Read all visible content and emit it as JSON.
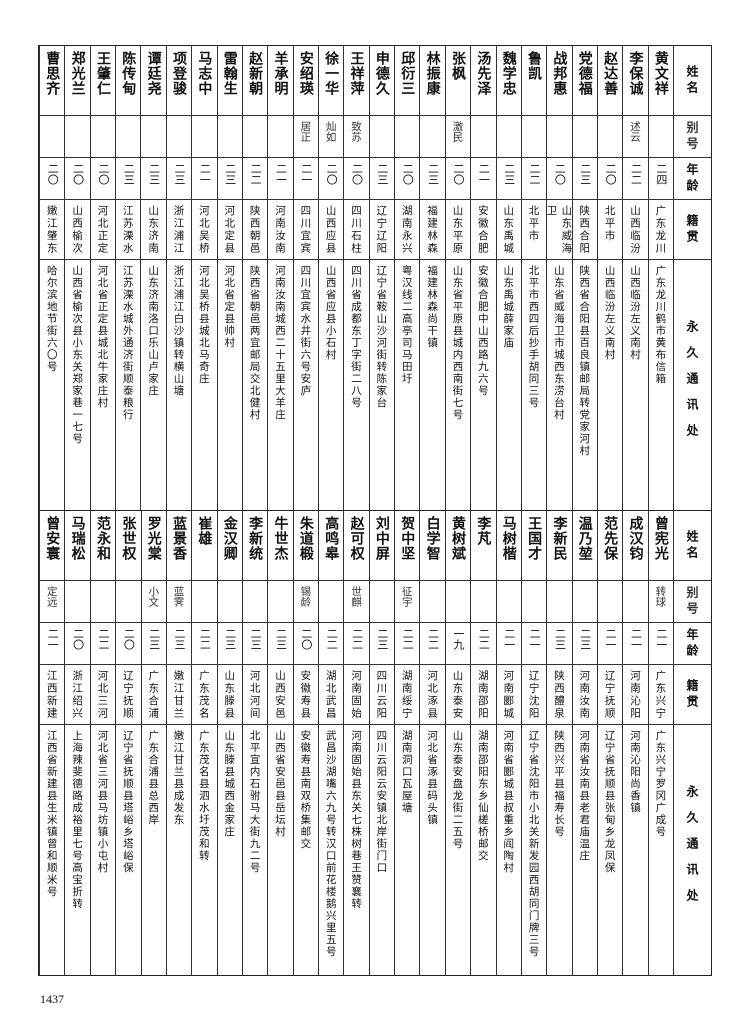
{
  "header": {
    "name": "姓名",
    "alias": "别号",
    "age": "年龄",
    "native": "籍贯",
    "address": "永久通讯处"
  },
  "top_rows": [
    [
      "黄文祥",
      "",
      "二四",
      "广东龙川",
      "广东龙川鹤市黄布信箱"
    ],
    [
      "李保诚",
      "述云",
      "二二",
      "山西临汾",
      "山西临汾左义南村"
    ],
    [
      "赵达善",
      "",
      "二〇",
      "北平市",
      "山西临汾左义南村"
    ],
    [
      "党德福",
      "",
      "二三",
      "陕西合阳",
      "陕西省合阳县百良镇邮局转党家河村"
    ],
    [
      "战邦惠",
      "",
      "二〇",
      "山东威海卫",
      "山东省威海卫市城西东涝台村"
    ],
    [
      "鲁凯",
      "",
      "二二",
      "北平市",
      "北平市西四后抄手胡同三号"
    ],
    [
      "魏学忠",
      "",
      "二三",
      "山东禹城",
      "山东禹城薛家庙"
    ],
    [
      "汤先泽",
      "",
      "二一",
      "安徽合肥",
      "安徽合肥中山西路九六号"
    ],
    [
      "张枫",
      "激民",
      "二〇",
      "山东平原",
      "山东省平原县城内西南街七号"
    ],
    [
      "林振康",
      "",
      "二三",
      "福建林森",
      "福建林森尚干镇"
    ],
    [
      "邱衍三",
      "",
      "二〇",
      "湖南永兴",
      "粤汉线二高亭司马田圩"
    ],
    [
      "申德久",
      "",
      "二三",
      "辽宁辽阳",
      "辽宁省鞍山沙河街转陈家台"
    ],
    [
      "王祥萍",
      "致苏",
      "二〇",
      "四川石柱",
      "四川省成都东丁字街二八号"
    ],
    [
      "徐一华",
      "灿如",
      "二〇",
      "山西应县",
      "山西省应县小石村"
    ],
    [
      "安绍瑛",
      "居正",
      "二一",
      "四川宜宾",
      "四川宜宾水井街六号安庐"
    ],
    [
      "羊承明",
      "",
      "二一",
      "河南汝南",
      "河南汝南城西二十五里大羊庄"
    ],
    [
      "赵新朝",
      "",
      "二二",
      "陕西朝邑",
      "陕西省朝邑两宜邮局交北健村"
    ],
    [
      "雷翰生",
      "",
      "二三",
      "河北定县",
      "河北省定县帅村"
    ],
    [
      "马志中",
      "",
      "二一",
      "河北吴桥",
      "河北吴桥县城北马奇庄"
    ],
    [
      "项登骏",
      "",
      "二三",
      "浙江浦江",
      "浙江浦江白沙镇转横山塘"
    ],
    [
      "谭廷尧",
      "",
      "二三",
      "山东济南",
      "山东济南洛口乐山卢家庄"
    ],
    [
      "陈传甸",
      "",
      "二三",
      "江苏溧水",
      "江苏溧水城外通济街顺泰粮行"
    ],
    [
      "王肇仁",
      "",
      "二〇",
      "河北正定",
      "河北省正定县城北牛家庄村"
    ],
    [
      "郑光兰",
      "",
      "二〇",
      "山西榆次",
      "山西省榆次县小东关郑家巷一七号"
    ],
    [
      "曹思齐",
      "",
      "二〇",
      "嫩江肇东",
      "哈尔滨地节街六〇号"
    ]
  ],
  "bottom_rows": [
    [
      "曾宪光",
      "转球",
      "二一",
      "广东兴宁",
      "广东兴宁罗冈广成号"
    ],
    [
      "成汉钧",
      "",
      "二一",
      "河南沁阳",
      "河南沁阳尚香镇"
    ],
    [
      "范先保",
      "",
      "二一",
      "辽宁抚顺",
      "辽宁省抚顺县张甸乡龙凤保"
    ],
    [
      "温乃堃",
      "",
      "二三",
      "河南汝南",
      "河南省汝南县老君庙温庄"
    ],
    [
      "李新民",
      "",
      "二三",
      "陕西醴泉",
      "陕西兴平县福寿长号"
    ],
    [
      "王国才",
      "",
      "二一",
      "辽宁沈阳",
      "辽宁省沈阳市小北关新发园西胡同门牌三号"
    ],
    [
      "马树楷",
      "",
      "二一",
      "河南郾城",
      "河南省郾城县叔重乡阎陶村"
    ],
    [
      "李芃",
      "",
      "二二",
      "湖南邵阳",
      "湖南邵阳东乡仙槎桥邮交"
    ],
    [
      "黄树斌",
      "",
      "一九",
      "山东泰安",
      "山东泰安盘龙街二五号"
    ],
    [
      "白学智",
      "",
      "二二",
      "河北涿县",
      "河北省涿县码头镇"
    ],
    [
      "贺中坚",
      "征宇",
      "二二",
      "湖南绥宁",
      "湖南洞口瓦屋塘"
    ],
    [
      "刘中屏",
      "",
      "二三",
      "四川云阳",
      "四川云阳云安镇北岸街门口"
    ],
    [
      "赵可权",
      "世麒",
      "二二",
      "河南固始",
      "河南固始县东关七株树巷王赞襄转"
    ],
    [
      "高鸣皋",
      "",
      "二二",
      "湖北武昌",
      "武昌沙湖嘴六九号转汉口前花楼鹅兴里五号"
    ],
    [
      "朱道椴",
      "锡龄",
      "二〇",
      "安徽寿县",
      "安徽寿县南双桥集邮交"
    ],
    [
      "牛世杰",
      "",
      "二三",
      "山西安邑",
      "山西省安邑县岳坛村"
    ],
    [
      "李新统",
      "",
      "二三",
      "河北河间",
      "北平宣内石驸马大街九二号"
    ],
    [
      "金汉卿",
      "",
      "二三",
      "山东滕县",
      "山东滕县城西金家庄"
    ],
    [
      "崔雄",
      "",
      "二二",
      "广东茂名",
      "广东茂名县泗水圩茂和转"
    ],
    [
      "蓝景香",
      "蓝霁",
      "二三",
      "嫩江甘兰",
      "嫩江甘兰县成发东"
    ],
    [
      "罗光棠",
      "小文",
      "二三",
      "广东合浦",
      "广东合浦县总西岸"
    ],
    [
      "张世权",
      "",
      "二〇",
      "辽宁抚顺",
      "辽宁省抚顺县塔峪乡塔峪保"
    ],
    [
      "范永和",
      "",
      "二二",
      "河北三河",
      "河北省三河县马坊镇小屯村"
    ],
    [
      "马瑞松",
      "",
      "二〇",
      "浙江绍兴",
      "上海辣斐德路成裕里七号高宝折转"
    ],
    [
      "曾安寰",
      "定远",
      "二一",
      "江西新建",
      "江西省新建县生米镇曾和顺米号"
    ]
  ],
  "page_number": "1437"
}
